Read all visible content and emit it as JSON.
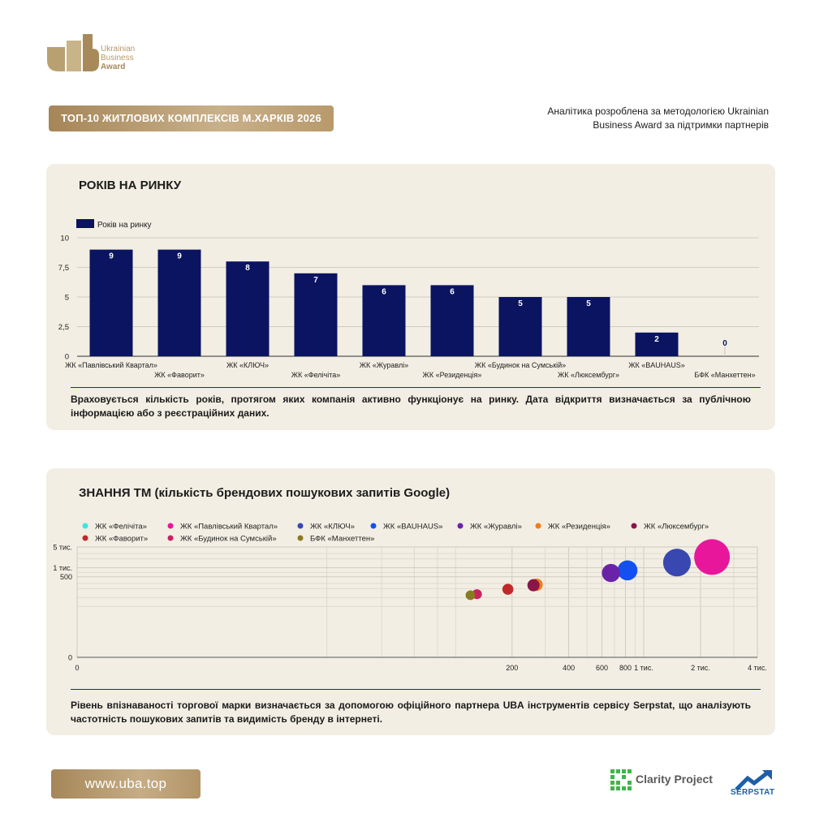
{
  "brand": {
    "logo_lines": [
      "Ukrainian",
      "Business",
      "Award"
    ]
  },
  "header": {
    "title": "ТОП-10 ЖИТЛОВИХ КОМПЛЕКСІВ М.ХАРКІВ 2026",
    "method_note": "Аналітика розроблена за методологією Ukrainian Business Award за підтримки партнерів"
  },
  "colors": {
    "gold": "#b59a6a",
    "card_bg": "#f2eee3",
    "bar_navy": "#0b1460"
  },
  "section1": {
    "title": "РОКІВ НА РИНКУ",
    "note": "Враховується кількість років, протягом яких компанія активно функціонує на ринку. Дата відкриття визначається за публічною інформацією або з реєстраційних даних."
  },
  "section2": {
    "title": "ЗНАННЯ ТМ (кількість брендових пошукових запитів Google)",
    "note": "Рівень впізнаваності торгової марки визначається за допомогою офіційного партнера UBA інструментів сервісу Serpstat, що аналізують частотність пошукових запитів та видимість бренду в інтернеті."
  },
  "chart_data": [
    {
      "type": "bar",
      "legend": "Років на ринку",
      "legend_position": "top-left",
      "categories": [
        "ЖК «Павлівський Квартал»",
        "ЖК «Фаворит»",
        "ЖК «КЛЮЧ»",
        "ЖК «Фелічіта»",
        "ЖК «Журавлі»",
        "ЖК «Резиденція»",
        "ЖК «Будинок на Сумській»",
        "ЖК «Люксембург»",
        "ЖК «BAUHAUS»",
        "БФК «Манхеттен»"
      ],
      "series": [
        {
          "name": "Років на ринку",
          "values": [
            9,
            9,
            8,
            7,
            6,
            6,
            5,
            5,
            2,
            0
          ],
          "color": "#0b1460"
        }
      ],
      "ylim": [
        0,
        10
      ],
      "yticks": [
        0,
        2.5,
        5,
        7.5,
        10
      ],
      "ytick_labels": [
        "0",
        "2,5",
        "5",
        "7,5",
        "10"
      ],
      "grid": true
    },
    {
      "type": "scatter",
      "x_scale": "log",
      "y_scale": "log",
      "xticks": [
        0,
        200,
        400,
        600,
        800,
        1000,
        2000,
        4000
      ],
      "xtick_labels": [
        "0",
        "200",
        "400",
        "600",
        "800",
        "1 тис.",
        "2 тис.",
        "4 тис."
      ],
      "yticks": [
        0,
        500,
        1000,
        5000
      ],
      "ytick_labels": [
        "0",
        "500",
        "1 тис.",
        "5 тис."
      ],
      "grid": true,
      "legend_position": "top",
      "series": [
        {
          "name": "ЖК «Фелічіта»",
          "color": "#3fe3e0",
          "points": []
        },
        {
          "name": "ЖК «Павлівський Квартал»",
          "color": "#e8169a",
          "points": [
            {
              "x": 2300,
              "y": 2300
            }
          ]
        },
        {
          "name": "ЖК «КЛЮЧ»",
          "color": "#3848b0",
          "points": [
            {
              "x": 1500,
              "y": 1500
            }
          ]
        },
        {
          "name": "ЖК «BAUHAUS»",
          "color": "#1450f0",
          "points": [
            {
              "x": 820,
              "y": 820
            }
          ]
        },
        {
          "name": "ЖК «Журавлі»",
          "color": "#6a22a8",
          "points": [
            {
              "x": 670,
              "y": 670
            }
          ]
        },
        {
          "name": "ЖК «Резиденція»",
          "color": "#f07c18",
          "points": [
            {
              "x": 270,
              "y": 270
            }
          ]
        },
        {
          "name": "ЖК «Люксембург»",
          "color": "#8a1548",
          "points": [
            {
              "x": 260,
              "y": 260
            }
          ]
        },
        {
          "name": "ЖК «Фаворит»",
          "color": "#c0282a",
          "points": [
            {
              "x": 190,
              "y": 190
            }
          ]
        },
        {
          "name": "ЖК «Будинок на Сумській»",
          "color": "#cc2060",
          "points": [
            {
              "x": 130,
              "y": 130
            }
          ]
        },
        {
          "name": "БФК «Манхеттен»",
          "color": "#8a7a22",
          "points": [
            {
              "x": 120,
              "y": 120
            }
          ]
        }
      ]
    }
  ],
  "footer": {
    "site": "www.uba.top",
    "partner1": "Clarity Project",
    "partner2": "SERPSTAT"
  }
}
